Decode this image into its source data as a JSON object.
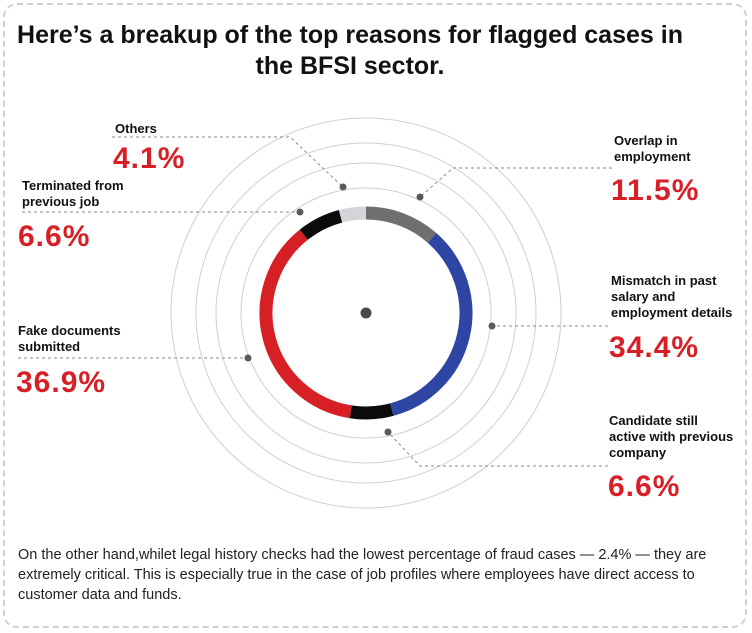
{
  "chart_data": {
    "type": "pie",
    "title": "Here’s a breakup of the top reasons for flagged cases in the BFSI sector.",
    "slices": [
      {
        "name": "Overlap in employment",
        "value": 11.5,
        "value_label": "11.5%",
        "color": "#6d6f70"
      },
      {
        "name": "Mismatch in past salary and employment details",
        "value": 34.4,
        "value_label": "34.4%",
        "color": "#2e45a3"
      },
      {
        "name": "Candidate still active with previous company",
        "value": 6.6,
        "value_label": "6.6%",
        "color": "#0b0b0b"
      },
      {
        "name": "Fake documents submitted",
        "value": 36.9,
        "value_label": "36.9%",
        "color": "#d71f26"
      },
      {
        "name": "Terminated from previous job",
        "value": 6.6,
        "value_label": "6.6%",
        "color": "#0b0b0b"
      },
      {
        "name": "Others",
        "value": 4.1,
        "value_label": "4.1%",
        "color": "#d4d5d8"
      }
    ]
  },
  "footer_text": "On the other hand,whilet legal history checks had the lowest percentage of fraud cases — 2.4% — they are extremely critical. This is especially true in the case of job profiles where employees have direct access to customer data and funds."
}
